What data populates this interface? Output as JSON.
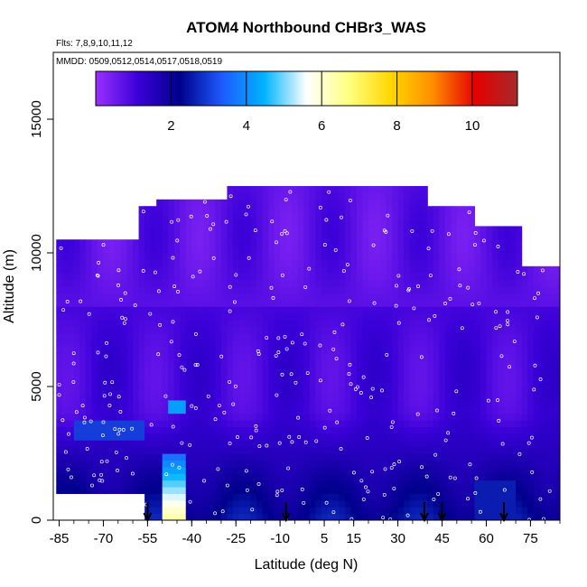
{
  "chart_data": {
    "type": "heatmap",
    "title": "ATOM4 Northbound CHBr3_WAS",
    "subtitle_flights": "Flts: 7,8,9,10,11,12",
    "subtitle_dates": "MMDD: 0509,0512,0514,0517,0518,0519",
    "xlabel": "Latitude (deg N)",
    "ylabel": "Altitude (m)",
    "xlim": [
      -87,
      85
    ],
    "ylim": [
      0,
      17500
    ],
    "x_ticks": [
      -85,
      -70,
      -55,
      -40,
      -25,
      -10,
      5,
      15,
      30,
      45,
      60,
      75
    ],
    "y_ticks": [
      0,
      5000,
      10000,
      15000
    ],
    "colorbar": {
      "range": [
        0,
        11.2
      ],
      "ticks": [
        2,
        4,
        6,
        8,
        10
      ],
      "colors": [
        "#9b30ff",
        "#3a00d8",
        "#00008b",
        "#1e5aff",
        "#00b4ff",
        "#ffffff",
        "#ffff80",
        "#ffd700",
        "#ff8c00",
        "#e60000",
        "#a52a2a"
      ]
    },
    "profile_latitudes": [
      -55,
      -8,
      39,
      45,
      66
    ],
    "grid": false,
    "legend": "none",
    "colors": {
      "background_low": "#8a2be2",
      "mid": "#3f1fd6",
      "high": "#0a0aa8",
      "hotspot": "#cc0000"
    }
  }
}
